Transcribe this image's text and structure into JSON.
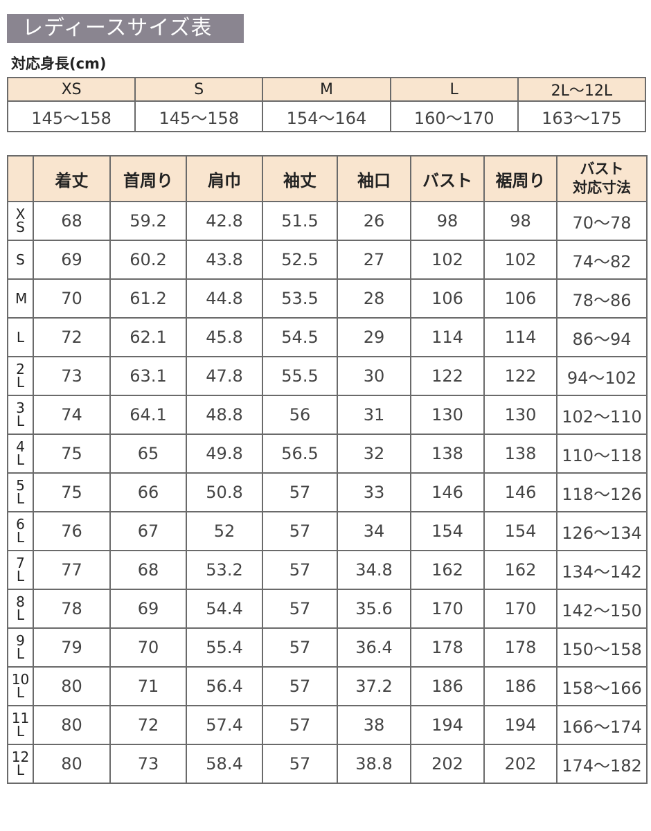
{
  "title": "レディースサイズ表",
  "height_label": "対応身長(cm)",
  "height_table": {
    "sizes": [
      "XS",
      "S",
      "M",
      "L",
      "2L〜12L"
    ],
    "ranges": [
      "145〜158",
      "145〜158",
      "154〜164",
      "160〜170",
      "163〜175"
    ]
  },
  "size_table": {
    "headers": [
      "着丈",
      "首周り",
      "肩巾",
      "袖丈",
      "袖口",
      "バスト",
      "裾周り",
      "バスト\n対応寸法"
    ],
    "rows": [
      {
        "size": "XS",
        "values": [
          "68",
          "59.2",
          "42.8",
          "51.5",
          "26",
          "98",
          "98",
          "70〜78"
        ]
      },
      {
        "size": "S",
        "values": [
          "69",
          "60.2",
          "43.8",
          "52.5",
          "27",
          "102",
          "102",
          "74〜82"
        ]
      },
      {
        "size": "M",
        "values": [
          "70",
          "61.2",
          "44.8",
          "53.5",
          "28",
          "106",
          "106",
          "78〜86"
        ]
      },
      {
        "size": "L",
        "values": [
          "72",
          "62.1",
          "45.8",
          "54.5",
          "29",
          "114",
          "114",
          "86〜94"
        ]
      },
      {
        "size": "2L",
        "values": [
          "73",
          "63.1",
          "47.8",
          "55.5",
          "30",
          "122",
          "122",
          "94〜102"
        ]
      },
      {
        "size": "3L",
        "values": [
          "74",
          "64.1",
          "48.8",
          "56",
          "31",
          "130",
          "130",
          "102〜110"
        ]
      },
      {
        "size": "4L",
        "values": [
          "75",
          "65",
          "49.8",
          "56.5",
          "32",
          "138",
          "138",
          "110〜118"
        ]
      },
      {
        "size": "5L",
        "values": [
          "75",
          "66",
          "50.8",
          "57",
          "33",
          "146",
          "146",
          "118〜126"
        ]
      },
      {
        "size": "6L",
        "values": [
          "76",
          "67",
          "52",
          "57",
          "34",
          "154",
          "154",
          "126〜134"
        ]
      },
      {
        "size": "7L",
        "values": [
          "77",
          "68",
          "53.2",
          "57",
          "34.8",
          "162",
          "162",
          "134〜142"
        ]
      },
      {
        "size": "8L",
        "values": [
          "78",
          "69",
          "54.4",
          "57",
          "35.6",
          "170",
          "170",
          "142〜150"
        ]
      },
      {
        "size": "9L",
        "values": [
          "79",
          "70",
          "55.4",
          "57",
          "36.4",
          "178",
          "178",
          "150〜158"
        ]
      },
      {
        "size": "10L",
        "values": [
          "80",
          "71",
          "56.4",
          "57",
          "37.2",
          "186",
          "186",
          "158〜166"
        ]
      },
      {
        "size": "11L",
        "values": [
          "80",
          "72",
          "57.4",
          "57",
          "38",
          "194",
          "194",
          "166〜174"
        ]
      },
      {
        "size": "12L",
        "values": [
          "80",
          "73",
          "58.4",
          "57",
          "38.8",
          "202",
          "202",
          "174〜182"
        ]
      }
    ]
  },
  "colors": {
    "title_bg": "#8a8590",
    "header_bg": "#f9e5cf",
    "border": "#6a6a6a"
  }
}
